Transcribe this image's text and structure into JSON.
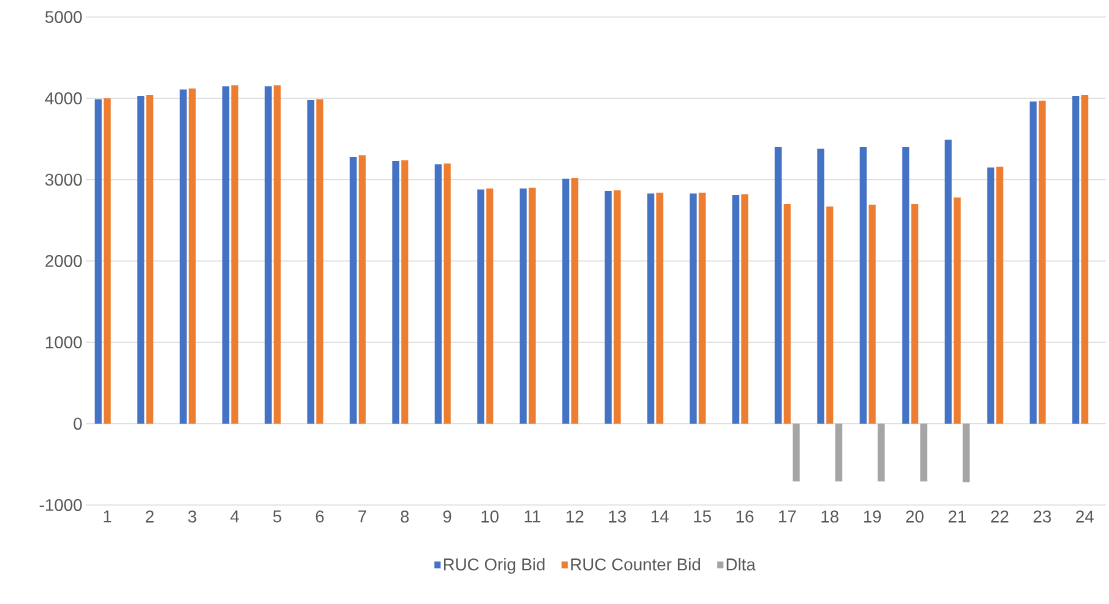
{
  "chart_data": {
    "type": "bar",
    "categories": [
      "1",
      "2",
      "3",
      "4",
      "5",
      "6",
      "7",
      "8",
      "9",
      "10",
      "11",
      "12",
      "13",
      "14",
      "15",
      "16",
      "17",
      "18",
      "19",
      "20",
      "21",
      "22",
      "23",
      "24"
    ],
    "series": [
      {
        "name": "RUC Orig Bid",
        "color": "#4472c4",
        "values": [
          3990,
          4030,
          4110,
          4150,
          4150,
          3980,
          3280,
          3230,
          3190,
          2880,
          2890,
          3010,
          2860,
          2830,
          2830,
          2810,
          3400,
          3380,
          3400,
          3400,
          3490,
          3150,
          3960,
          4030
        ]
      },
      {
        "name": "RUC Counter Bid",
        "color": "#ed7d31",
        "values": [
          4000,
          4040,
          4120,
          4160,
          4160,
          3990,
          3300,
          3240,
          3200,
          2890,
          2900,
          3020,
          2870,
          2840,
          2840,
          2820,
          2700,
          2670,
          2690,
          2700,
          2780,
          3160,
          3970,
          4040
        ]
      },
      {
        "name": "Dlta",
        "color": "#a5a5a5",
        "values": [
          0,
          0,
          0,
          0,
          0,
          0,
          0,
          0,
          0,
          0,
          0,
          0,
          0,
          0,
          0,
          0,
          -710,
          -710,
          -710,
          -710,
          -720,
          0,
          0,
          0
        ]
      }
    ],
    "ylim": [
      -1000,
      5000
    ],
    "yticks": [
      -1000,
      0,
      1000,
      2000,
      3000,
      4000,
      5000
    ],
    "grid": "y",
    "legend": "bottom"
  }
}
